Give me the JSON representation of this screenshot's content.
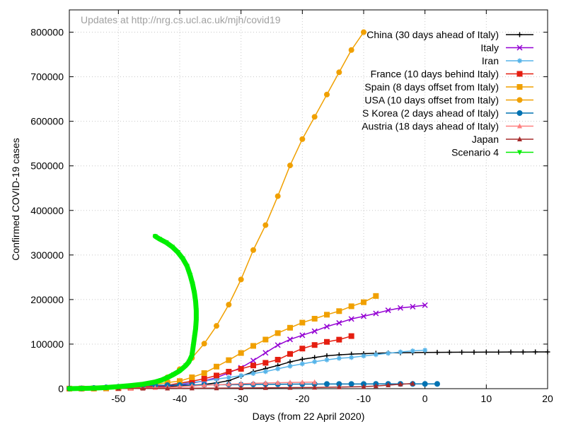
{
  "chart_data": {
    "type": "line",
    "note": "Updates at http://nrg.cs.ucl.ac.uk/mjh/covid19",
    "xlabel": "Days (from 22 April 2020)",
    "ylabel": "Confirmed COVID-19 cases",
    "xlim": [
      -58,
      20
    ],
    "ylim": [
      0,
      850000
    ],
    "xticks": [
      -50,
      -40,
      -30,
      -20,
      -10,
      0,
      10,
      20
    ],
    "yticks": [
      0,
      100000,
      200000,
      300000,
      400000,
      500000,
      600000,
      700000,
      800000
    ],
    "grid": true,
    "legend_position": "top-right",
    "series": [
      {
        "name": "China (30 days ahead of Italy)",
        "color": "#000000",
        "marker": "plus",
        "x": [
          -58,
          -56,
          -54,
          -52,
          -50,
          -48,
          -46,
          -44,
          -42,
          -40,
          -38,
          -36,
          -34,
          -32,
          -30,
          -28,
          -26,
          -24,
          -22,
          -20,
          -18,
          -16,
          -14,
          -12,
          -10,
          -8,
          -6,
          -4,
          -2,
          0,
          2,
          4,
          6,
          8,
          10,
          12,
          14,
          16,
          18,
          20
        ],
        "y": [
          1200,
          1400,
          1700,
          2100,
          2500,
          3000,
          3600,
          4200,
          5000,
          6000,
          7500,
          9500,
          13000,
          18000,
          28000,
          38000,
          45000,
          52000,
          60000,
          66000,
          70000,
          74000,
          76000,
          77500,
          78500,
          79500,
          80200,
          80600,
          80900,
          81200,
          81400,
          81600,
          81800,
          81900,
          82000,
          82100,
          82200,
          82300,
          82400,
          82500
        ]
      },
      {
        "name": "Italy",
        "color": "#9400d3",
        "marker": "x",
        "x": [
          -58,
          -56,
          -54,
          -52,
          -50,
          -48,
          -46,
          -44,
          -42,
          -40,
          -38,
          -36,
          -34,
          -32,
          -30,
          -28,
          -26,
          -24,
          -22,
          -20,
          -18,
          -16,
          -14,
          -12,
          -10,
          -8,
          -6,
          -4,
          -2,
          0
        ],
        "y": [
          300,
          500,
          800,
          1300,
          1700,
          2300,
          3100,
          4600,
          6400,
          9200,
          12500,
          17700,
          24700,
          35700,
          47000,
          63000,
          80500,
          97700,
          110500,
          119800,
          128900,
          139400,
          147600,
          156400,
          162500,
          168900,
          175900,
          181200,
          183950,
          187300
        ]
      },
      {
        "name": "Iran",
        "color": "#56b4e9",
        "marker": "star",
        "x": [
          -58,
          -56,
          -54,
          -52,
          -50,
          -48,
          -46,
          -44,
          -42,
          -40,
          -38,
          -36,
          -34,
          -32,
          -30,
          -28,
          -26,
          -24,
          -22,
          -20,
          -18,
          -16,
          -14,
          -12,
          -10,
          -8,
          -6,
          -4,
          -2,
          0
        ],
        "y": [
          200,
          300,
          500,
          900,
          1500,
          2300,
          3500,
          5800,
          8000,
          11000,
          14000,
          17000,
          21600,
          25000,
          29400,
          34000,
          38300,
          44600,
          50500,
          55700,
          60500,
          64600,
          68200,
          70000,
          73300,
          76400,
          79500,
          82200,
          84800,
          86500
        ]
      },
      {
        "name": "France (10 days behind Italy)",
        "color": "#e51e10",
        "marker": "box",
        "x": [
          -58,
          -56,
          -54,
          -52,
          -50,
          -48,
          -46,
          -44,
          -42,
          -40,
          -38,
          -36,
          -34,
          -32,
          -30,
          -28,
          -26,
          -24,
          -22,
          -20,
          -18,
          -16,
          -14,
          -12
        ],
        "y": [
          100,
          200,
          400,
          700,
          1200,
          2000,
          3500,
          5400,
          7600,
          12500,
          16700,
          22300,
          29500,
          38100,
          44500,
          52100,
          58000,
          65000,
          78000,
          90000,
          98000,
          105000,
          110000,
          118000
        ]
      },
      {
        "name": "Spain (8 days offset from Italy)",
        "color": "#f0a000",
        "marker": "box",
        "x": [
          -58,
          -56,
          -54,
          -52,
          -50,
          -48,
          -46,
          -44,
          -42,
          -40,
          -38,
          -36,
          -34,
          -32,
          -30,
          -28,
          -26,
          -24,
          -22,
          -20,
          -18,
          -16,
          -14,
          -12,
          -10,
          -8
        ],
        "y": [
          100,
          300,
          600,
          1200,
          2200,
          4000,
          6500,
          9500,
          13700,
          17000,
          25500,
          35000,
          49500,
          64000,
          80000,
          96000,
          110200,
          124700,
          136700,
          148200,
          157000,
          166000,
          174000,
          184900,
          194000,
          208000
        ]
      },
      {
        "name": "USA (10 days offset from Italy)",
        "color": "#f0a000",
        "marker": "circle",
        "x": [
          -58,
          -56,
          -54,
          -52,
          -50,
          -48,
          -46,
          -44,
          -42,
          -40,
          -38,
          -36,
          -34,
          -32,
          -30,
          -28,
          -26,
          -24,
          -22,
          -20,
          -18,
          -16,
          -14,
          -12,
          -10
        ],
        "y": [
          100,
          200,
          400,
          700,
          1600,
          3500,
          7800,
          14000,
          25500,
          43700,
          69000,
          101000,
          140900,
          188500,
          245000,
          311000,
          367000,
          432000,
          501000,
          560000,
          610000,
          660000,
          710000,
          760000,
          800000
        ]
      },
      {
        "name": "S Korea (2 days ahead of Italy)",
        "color": "#0072b2",
        "marker": "circle",
        "x": [
          -58,
          -56,
          -54,
          -52,
          -50,
          -48,
          -46,
          -44,
          -42,
          -40,
          -38,
          -36,
          -34,
          -32,
          -30,
          -28,
          -26,
          -24,
          -22,
          -20,
          -18,
          -16,
          -14,
          -12,
          -10,
          -8,
          -6,
          -4,
          -2,
          0,
          2
        ],
        "y": [
          200,
          600,
          1600,
          2900,
          4300,
          5800,
          6800,
          7500,
          7900,
          8200,
          8400,
          8600,
          8800,
          9000,
          9200,
          9500,
          9700,
          9900,
          10100,
          10300,
          10400,
          10500,
          10500,
          10600,
          10600,
          10700,
          10700,
          10700,
          10700,
          10700,
          10700
        ]
      },
      {
        "name": "Austria (18 days ahead of Italy)",
        "color": "#ff8080",
        "marker": "triangle",
        "x": [
          -50,
          -48,
          -46,
          -44,
          -42,
          -40,
          -38,
          -36,
          -34,
          -32,
          -30,
          -28,
          -26,
          -24,
          -22,
          -20,
          -18
        ],
        "y": [
          500,
          800,
          1300,
          2000,
          3000,
          4500,
          6000,
          7700,
          8800,
          10000,
          11100,
          12000,
          12600,
          13200,
          13800,
          14300,
          14700
        ]
      },
      {
        "name": "Japan",
        "color": "#a52a2a",
        "marker": "triangle",
        "x": [
          -58,
          -54,
          -50,
          -46,
          -42,
          -38,
          -34,
          -30,
          -26,
          -22,
          -18,
          -14,
          -10,
          -8,
          -6,
          -4,
          -2
        ],
        "y": [
          100,
          200,
          400,
          600,
          800,
          1000,
          1200,
          1500,
          1900,
          2300,
          2800,
          3500,
          4500,
          6000,
          8000,
          10000,
          11500
        ]
      },
      {
        "name": "Scenario 4",
        "color": "#00ee00",
        "marker": "triangle-down",
        "x": [
          -58,
          -56,
          -54,
          -52,
          -50,
          -48,
          -46,
          -44,
          -43,
          -42,
          -41,
          -40,
          -39,
          -38.5,
          -38,
          -37.8,
          -37.6,
          -37.4,
          -37.3,
          -37.3,
          -37.4,
          -37.6,
          -37.9,
          -38.3,
          -38.8,
          -39.5,
          -40.3,
          -41.2,
          -42.2,
          -43.3,
          -44
        ],
        "y": [
          0,
          500,
          1200,
          2500,
          4500,
          7000,
          10000,
          15000,
          19000,
          25000,
          32000,
          40000,
          52000,
          60000,
          75000,
          95000,
          115000,
          135000,
          155000,
          175000,
          195000,
          215000,
          235000,
          255000,
          275000,
          292000,
          306000,
          318000,
          328000,
          336000,
          342000
        ]
      }
    ]
  }
}
